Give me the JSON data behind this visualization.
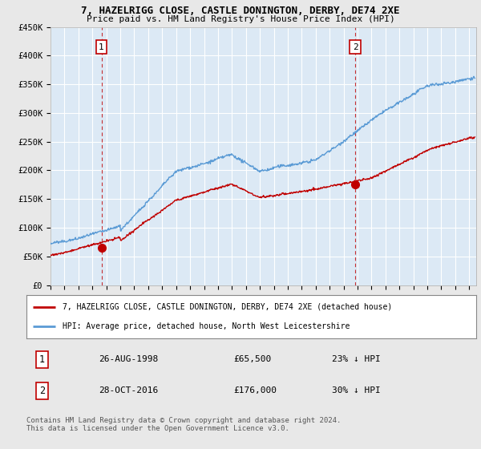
{
  "title": "7, HAZELRIGG CLOSE, CASTLE DONINGTON, DERBY, DE74 2XE",
  "subtitle": "Price paid vs. HM Land Registry's House Price Index (HPI)",
  "x_start": 1995.0,
  "x_end": 2025.5,
  "y_min": 0,
  "y_max": 450000,
  "y_ticks": [
    0,
    50000,
    100000,
    150000,
    200000,
    250000,
    300000,
    350000,
    400000,
    450000
  ],
  "y_tick_labels": [
    "£0",
    "£50K",
    "£100K",
    "£150K",
    "£200K",
    "£250K",
    "£300K",
    "£350K",
    "£400K",
    "£450K"
  ],
  "x_ticks": [
    1995,
    1996,
    1997,
    1998,
    1999,
    2000,
    2001,
    2002,
    2003,
    2004,
    2005,
    2006,
    2007,
    2008,
    2009,
    2010,
    2011,
    2012,
    2013,
    2014,
    2015,
    2016,
    2017,
    2018,
    2019,
    2020,
    2021,
    2022,
    2023,
    2024,
    2025
  ],
  "hpi_color": "#5b9bd5",
  "price_color": "#c00000",
  "background_color": "#e8e8e8",
  "plot_bg_color": "#dce9f5",
  "grid_color": "#ffffff",
  "purchase1_x": 1998.65,
  "purchase1_y": 65500,
  "purchase1_label": "1",
  "purchase2_x": 2016.83,
  "purchase2_y": 176000,
  "purchase2_label": "2",
  "legend_line1": "7, HAZELRIGG CLOSE, CASTLE DONINGTON, DERBY, DE74 2XE (detached house)",
  "legend_line2": "HPI: Average price, detached house, North West Leicestershire",
  "table_row1_num": "1",
  "table_row1_date": "26-AUG-1998",
  "table_row1_price": "£65,500",
  "table_row1_hpi": "23% ↓ HPI",
  "table_row2_num": "2",
  "table_row2_date": "28-OCT-2016",
  "table_row2_price": "£176,000",
  "table_row2_hpi": "30% ↓ HPI",
  "footer": "Contains HM Land Registry data © Crown copyright and database right 2024.\nThis data is licensed under the Open Government Licence v3.0."
}
